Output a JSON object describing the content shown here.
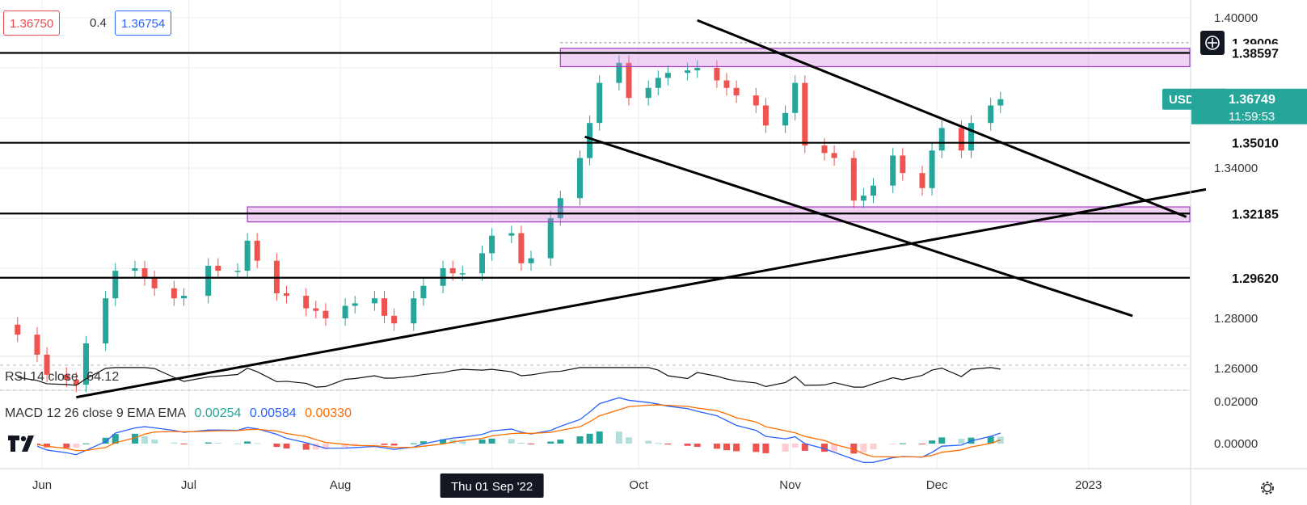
{
  "quote": {
    "bid": "1.36750",
    "spread": "0.4",
    "ask": "1.36754"
  },
  "symbol": "USDCAD",
  "price_axis": {
    "ticks": [
      "1.40000",
      "1.34000",
      "1.28000",
      "1.26000",
      "0.02000",
      "0.00000"
    ],
    "level_labels": [
      "1.39006",
      "1.38597",
      "1.35010",
      "1.32185",
      "1.29620"
    ],
    "last_price": "1.36749",
    "countdown": "11:59:53"
  },
  "time_axis": {
    "labels": [
      "Jun",
      "Jul",
      "Aug",
      "Oct",
      "Nov",
      "Dec",
      "2023"
    ],
    "cursor_label": "Thu 01 Sep '22"
  },
  "rsi": {
    "name": "RSI 14 close",
    "value": "64.12"
  },
  "macd": {
    "name": "MACD 12 26 close 9 EMA EMA",
    "hist": "0.00254",
    "macd": "0.00584",
    "signal": "0.00330",
    "colors": {
      "hist": "#26a69a",
      "macd": "#2962ff",
      "signal": "#ff6d00"
    }
  },
  "colors": {
    "up": "#26a69a",
    "down": "#ef5350",
    "zone": "#d580e0",
    "last_price": "#26a69a"
  },
  "chart_data": {
    "type": "candlestick",
    "symbol": "USDCAD",
    "timeframe": "daily",
    "ylim": [
      1.245,
      1.405
    ],
    "date_range": [
      "2022-05-26",
      "2023-01-31"
    ],
    "horizontal_levels": [
      1.38597,
      1.3501,
      1.32185,
      1.2962
    ],
    "dashed_level": 1.39006,
    "resistance_zones": [
      {
        "from": "2022-09-15",
        "low": 1.3805,
        "high": 1.3878
      },
      {
        "from": "2022-07-13",
        "low": 1.3185,
        "high": 1.3245
      }
    ],
    "trendlines": [
      {
        "start": [
          "2022-06-08",
          1.2485
        ],
        "end": [
          "2023-01-25",
          1.3315
        ]
      },
      {
        "start": [
          "2022-10-13",
          1.399
        ],
        "end": [
          "2023-01-21",
          1.3205
        ]
      },
      {
        "start": [
          "2022-09-20",
          1.3525
        ],
        "end": [
          "2023-01-10",
          1.281
        ]
      }
    ],
    "closes": [
      [
        "2022-05-27",
        1.2735
      ],
      [
        "2022-05-31",
        1.2655
      ],
      [
        "2022-06-02",
        1.2575
      ],
      [
        "2022-06-06",
        1.2555
      ],
      [
        "2022-06-08",
        1.2535
      ],
      [
        "2022-06-10",
        1.27
      ],
      [
        "2022-06-14",
        1.288
      ],
      [
        "2022-06-16",
        1.299
      ],
      [
        "2022-06-20",
        1.3
      ],
      [
        "2022-06-22",
        1.296
      ],
      [
        "2022-06-24",
        1.292
      ],
      [
        "2022-06-28",
        1.288
      ],
      [
        "2022-06-30",
        1.289
      ],
      [
        "2022-07-05",
        1.301
      ],
      [
        "2022-07-07",
        1.299
      ],
      [
        "2022-07-11",
        1.299
      ],
      [
        "2022-07-13",
        1.311
      ],
      [
        "2022-07-15",
        1.303
      ],
      [
        "2022-07-19",
        1.29
      ],
      [
        "2022-07-21",
        1.289
      ],
      [
        "2022-07-25",
        1.284
      ],
      [
        "2022-07-27",
        1.283
      ],
      [
        "2022-07-29",
        1.28
      ],
      [
        "2022-08-02",
        1.285
      ],
      [
        "2022-08-04",
        1.286
      ],
      [
        "2022-08-08",
        1.288
      ],
      [
        "2022-08-10",
        1.281
      ],
      [
        "2022-08-12",
        1.278
      ],
      [
        "2022-08-16",
        1.288
      ],
      [
        "2022-08-18",
        1.293
      ],
      [
        "2022-08-22",
        1.3
      ],
      [
        "2022-08-24",
        1.298
      ],
      [
        "2022-08-26",
        1.298
      ],
      [
        "2022-08-30",
        1.306
      ],
      [
        "2022-09-01",
        1.313
      ],
      [
        "2022-09-05",
        1.314
      ],
      [
        "2022-09-07",
        1.302
      ],
      [
        "2022-09-09",
        1.304
      ],
      [
        "2022-09-13",
        1.32
      ],
      [
        "2022-09-15",
        1.328
      ],
      [
        "2022-09-19",
        1.344
      ],
      [
        "2022-09-21",
        1.358
      ],
      [
        "2022-09-23",
        1.374
      ],
      [
        "2022-09-27",
        1.382
      ],
      [
        "2022-09-29",
        1.368
      ],
      [
        "2022-10-03",
        1.372
      ],
      [
        "2022-10-05",
        1.376
      ],
      [
        "2022-10-07",
        1.378
      ],
      [
        "2022-10-11",
        1.379
      ],
      [
        "2022-10-13",
        1.38
      ],
      [
        "2022-10-17",
        1.375
      ],
      [
        "2022-10-19",
        1.372
      ],
      [
        "2022-10-21",
        1.369
      ],
      [
        "2022-10-25",
        1.365
      ],
      [
        "2022-10-27",
        1.357
      ],
      [
        "2022-10-31",
        1.362
      ],
      [
        "2022-11-02",
        1.374
      ],
      [
        "2022-11-04",
        1.349
      ],
      [
        "2022-11-08",
        1.346
      ],
      [
        "2022-11-10",
        1.344
      ],
      [
        "2022-11-14",
        1.327
      ],
      [
        "2022-11-16",
        1.329
      ],
      [
        "2022-11-18",
        1.333
      ],
      [
        "2022-11-22",
        1.345
      ],
      [
        "2022-11-24",
        1.338
      ],
      [
        "2022-11-28",
        1.332
      ],
      [
        "2022-11-30",
        1.347
      ],
      [
        "2022-12-02",
        1.356
      ],
      [
        "2022-12-06",
        1.347
      ],
      [
        "2022-12-08",
        1.358
      ],
      [
        "2022-12-12",
        1.365
      ],
      [
        "2022-12-14",
        1.3675
      ]
    ]
  }
}
